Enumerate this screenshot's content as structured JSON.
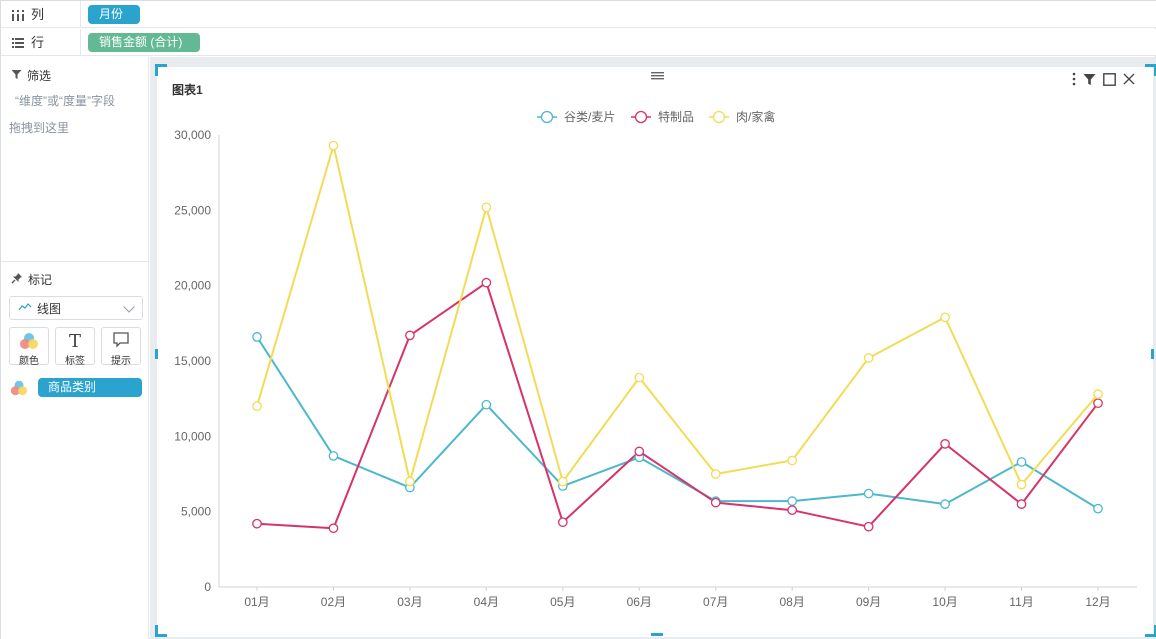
{
  "shelves": {
    "columns": {
      "label": "列",
      "icon": "columns-icon",
      "pill": "月份"
    },
    "rows": {
      "label": "行",
      "icon": "rows-icon",
      "pill": "销售金额 (合计)"
    }
  },
  "filter": {
    "title": "筛选",
    "hint1": "“维度”或“度量”字段",
    "hint2": "拖拽到这里"
  },
  "marks": {
    "title": "标记",
    "type": "线图",
    "buttons": [
      {
        "label": "颜色",
        "icon": "color-icon"
      },
      {
        "label": "标签",
        "icon": "text-icon"
      },
      {
        "label": "提示",
        "icon": "tooltip-icon"
      }
    ],
    "color_field": "商品类别"
  },
  "chart": {
    "title": "图表1",
    "toolbar": [
      "more-icon",
      "filter-icon",
      "maximize-icon",
      "close-icon"
    ]
  },
  "chart_data": {
    "type": "line",
    "categories": [
      "01月",
      "02月",
      "03月",
      "04月",
      "05月",
      "06月",
      "07月",
      "08月",
      "09月",
      "10月",
      "11月",
      "12月"
    ],
    "series": [
      {
        "name": "谷类/麦片",
        "color": "#4cb8cc",
        "values": [
          16600,
          8700,
          6600,
          12100,
          6700,
          8600,
          5700,
          5700,
          6200,
          5500,
          8300,
          5200
        ]
      },
      {
        "name": "特制品",
        "color": "#d63369",
        "values": [
          4200,
          3900,
          16700,
          20200,
          4300,
          9000,
          5600,
          5100,
          4000,
          9500,
          5500,
          12200
        ]
      },
      {
        "name": "肉/家禽",
        "color": "#f2dc55",
        "values": [
          12000,
          29300,
          7000,
          25200,
          7000,
          13900,
          7500,
          8400,
          15200,
          17900,
          6800,
          12800
        ]
      }
    ],
    "yticks": [
      "0",
      "5,000",
      "10,000",
      "15,000",
      "20,000",
      "25,000",
      "30,000"
    ],
    "ylim": [
      0,
      30000
    ],
    "legend": "top-center",
    "grid": false
  }
}
